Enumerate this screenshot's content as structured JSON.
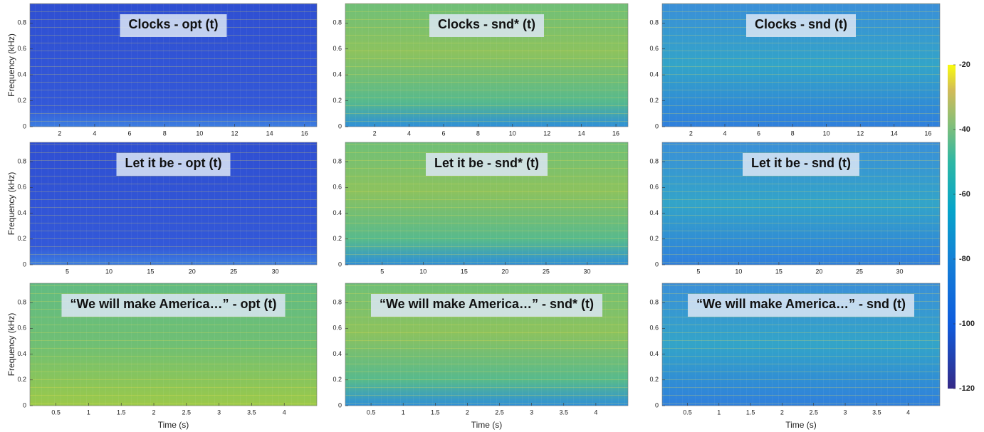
{
  "chart_data": [
    {
      "type": "heatmap",
      "title": "Clocks - opt (t)",
      "ylabel": "Frequency (kHz)",
      "xlim": [
        0.3,
        16.7
      ],
      "xticks": [
        2,
        4,
        6,
        8,
        10,
        12,
        14,
        16
      ],
      "ylim": [
        0,
        0.95
      ],
      "yticks": [
        0,
        0.2,
        0.4,
        0.6,
        0.8
      ]
    },
    {
      "type": "heatmap",
      "title": "Clocks - snd* (t)",
      "xlim": [
        0.3,
        16.7
      ],
      "xticks": [
        2,
        4,
        6,
        8,
        10,
        12,
        14,
        16
      ],
      "ylim": [
        0,
        0.95
      ],
      "yticks": [
        0,
        0.2,
        0.4,
        0.6,
        0.8
      ]
    },
    {
      "type": "heatmap",
      "title": "Clocks - snd (t)",
      "xlim": [
        0.3,
        16.7
      ],
      "xticks": [
        2,
        4,
        6,
        8,
        10,
        12,
        14,
        16
      ],
      "ylim": [
        0,
        0.95
      ],
      "yticks": [
        0,
        0.2,
        0.4,
        0.6,
        0.8
      ]
    },
    {
      "type": "heatmap",
      "title": "Let it be - opt (t)",
      "ylabel": "Frequency (kHz)",
      "xlim": [
        0.5,
        35
      ],
      "xticks": [
        5,
        10,
        15,
        20,
        25,
        30
      ],
      "ylim": [
        0,
        0.95
      ],
      "yticks": [
        0,
        0.2,
        0.4,
        0.6,
        0.8
      ]
    },
    {
      "type": "heatmap",
      "title": "Let it be - snd* (t)",
      "xlim": [
        0.5,
        35
      ],
      "xticks": [
        5,
        10,
        15,
        20,
        25,
        30
      ],
      "ylim": [
        0,
        0.95
      ],
      "yticks": [
        0,
        0.2,
        0.4,
        0.6,
        0.8
      ]
    },
    {
      "type": "heatmap",
      "title": "Let it be - snd (t)",
      "xlim": [
        0.5,
        35
      ],
      "xticks": [
        5,
        10,
        15,
        20,
        25,
        30
      ],
      "ylim": [
        0,
        0.95
      ],
      "yticks": [
        0,
        0.2,
        0.4,
        0.6,
        0.8
      ]
    },
    {
      "type": "heatmap",
      "title": "“We will make America…” - opt (t)",
      "ylabel": "Frequency (kHz)",
      "xlabel": "Time (s)",
      "xlim": [
        0.1,
        4.5
      ],
      "xticks": [
        0.5,
        1,
        1.5,
        2,
        2.5,
        3,
        3.5,
        4
      ],
      "ylim": [
        0,
        0.95
      ],
      "yticks": [
        0,
        0.2,
        0.4,
        0.6,
        0.8
      ]
    },
    {
      "type": "heatmap",
      "title": "“We will make America…” - snd* (t)",
      "xlabel": "Time (s)",
      "xlim": [
        0.1,
        4.5
      ],
      "xticks": [
        0.5,
        1,
        1.5,
        2,
        2.5,
        3,
        3.5,
        4
      ],
      "ylim": [
        0,
        0.95
      ],
      "yticks": [
        0,
        0.2,
        0.4,
        0.6,
        0.8
      ]
    },
    {
      "type": "heatmap",
      "title": "“We will make America…” - snd (t)",
      "xlabel": "Time (s)",
      "xlim": [
        0.1,
        4.5
      ],
      "xticks": [
        0.5,
        1,
        1.5,
        2,
        2.5,
        3,
        3.5,
        4
      ],
      "ylim": [
        0,
        0.95
      ],
      "yticks": [
        0,
        0.2,
        0.4,
        0.6,
        0.8
      ]
    },
    {
      "type": "colorbar",
      "ylim": [
        -120,
        -20
      ],
      "yticks": [
        -20,
        -40,
        -60,
        -80,
        -100,
        -120
      ]
    }
  ]
}
